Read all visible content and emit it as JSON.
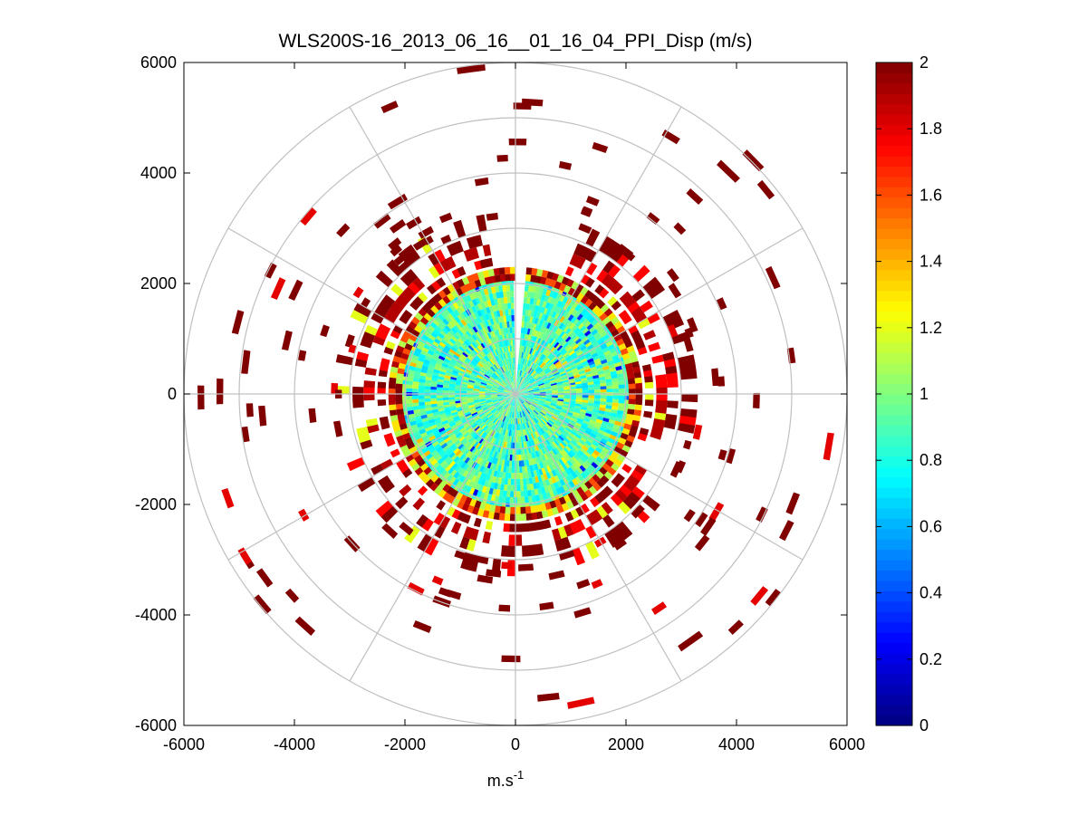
{
  "chart_data": {
    "type": "heatmap",
    "subtype": "polar-ppi-scan",
    "title": "WLS200S-16_2013_06_16__01_16_04_PPI_Disp (m/s)",
    "xlabel_base": "m.s",
    "xlabel_sup": "-1",
    "xlim": [
      -6000,
      6000
    ],
    "ylim": [
      -6000,
      6000
    ],
    "xticks": [
      -6000,
      -4000,
      -2000,
      0,
      2000,
      4000,
      6000
    ],
    "yticks": [
      -6000,
      -4000,
      -2000,
      0,
      2000,
      4000,
      6000
    ],
    "xtick_labels": [
      "-6000",
      "-4000",
      "-2000",
      "0",
      "2000",
      "4000",
      "6000"
    ],
    "ytick_labels": [
      "-6000",
      "-4000",
      "-2000",
      "0",
      "2000",
      "4000",
      "6000"
    ],
    "polar_grid": {
      "ring_step": 1000,
      "ring_max": 6000,
      "spoke_step_deg": 30
    },
    "scan": {
      "center_disk_radius": 2300,
      "center_gap_az_deg": [
        0,
        5
      ],
      "center_value_mean": 0.9,
      "center_value_range": [
        0.2,
        1.4
      ],
      "edge_band": {
        "r": [
          2050,
          2300
        ],
        "values": [
          1.1,
          1.3,
          1.6,
          1.9,
          2.0
        ]
      },
      "ring_bands": [
        {
          "r": [
            2350,
            2500
          ],
          "value": 2.0
        },
        {
          "r": [
            2550,
            2750
          ],
          "value": 1.9
        },
        {
          "r": [
            2750,
            2950
          ],
          "value": 2.0
        },
        {
          "r": [
            3000,
            3300
          ],
          "value": 2.0
        }
      ],
      "scatter_value": 2.0,
      "scatter_range": [
        3000,
        6000
      ]
    },
    "colorbar": {
      "colormap": "jet",
      "clim": [
        0,
        2
      ],
      "ticks": [
        0,
        0.2,
        0.4,
        0.6,
        0.8,
        1,
        1.2,
        1.4,
        1.6,
        1.8,
        2
      ],
      "tick_labels": [
        "0",
        "0.2",
        "0.4",
        "0.6",
        "0.8",
        "1",
        "1.2",
        "1.4",
        "1.6",
        "1.8",
        "2"
      ]
    }
  }
}
